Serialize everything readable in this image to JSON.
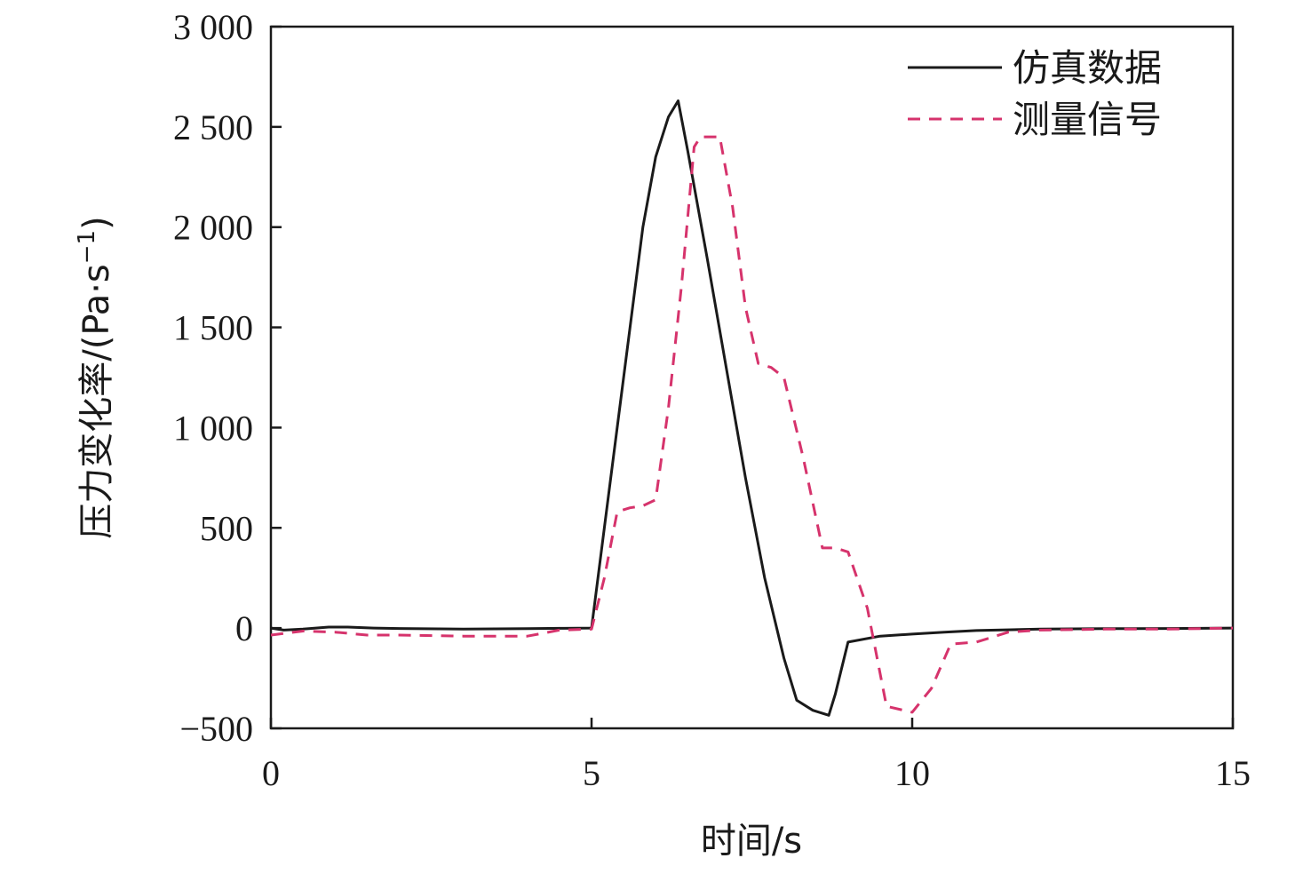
{
  "chart_data": {
    "type": "line",
    "title": "",
    "xlabel": "时间/s",
    "ylabel": "压力变化率/(Pa·s",
    "ylabel_sup": "−1",
    "ylabel_close": ")",
    "xlim": [
      0,
      15
    ],
    "ylim": [
      -500,
      3000
    ],
    "x_ticks": [
      0,
      5,
      10,
      15
    ],
    "x_tick_labels": [
      "0",
      "5",
      "10",
      "15"
    ],
    "y_ticks": [
      -500,
      0,
      500,
      1000,
      1500,
      2000,
      2500,
      3000
    ],
    "y_tick_labels": [
      "−500",
      "0",
      "500",
      "1 000",
      "1 500",
      "2 000",
      "2 500",
      "3 000"
    ],
    "grid": false,
    "legend_position": "top-right",
    "series": [
      {
        "name": "仿真数据",
        "color": "#1a1a1a",
        "dash": "solid",
        "points": [
          [
            0,
            0
          ],
          [
            0.2,
            -10
          ],
          [
            0.5,
            -5
          ],
          [
            0.9,
            5
          ],
          [
            1.2,
            5
          ],
          [
            1.6,
            0
          ],
          [
            2,
            -2
          ],
          [
            3,
            -5
          ],
          [
            4,
            -3
          ],
          [
            4.5,
            -1
          ],
          [
            5,
            0
          ],
          [
            5.2,
            500
          ],
          [
            5.5,
            1250
          ],
          [
            5.8,
            2000
          ],
          [
            6.0,
            2350
          ],
          [
            6.2,
            2550
          ],
          [
            6.35,
            2630
          ],
          [
            6.5,
            2380
          ],
          [
            6.8,
            1850
          ],
          [
            7.1,
            1300
          ],
          [
            7.4,
            750
          ],
          [
            7.7,
            250
          ],
          [
            8.0,
            -150
          ],
          [
            8.2,
            -360
          ],
          [
            8.45,
            -410
          ],
          [
            8.7,
            -435
          ],
          [
            8.8,
            -330
          ],
          [
            9.0,
            -70
          ],
          [
            9.5,
            -40
          ],
          [
            10,
            -30
          ],
          [
            10.5,
            -20
          ],
          [
            11,
            -12
          ],
          [
            12,
            -5
          ],
          [
            13,
            -3
          ],
          [
            14,
            -2
          ],
          [
            15,
            0
          ]
        ]
      },
      {
        "name": "测量信号",
        "color": "#d6336c",
        "dash": "dashed",
        "points": [
          [
            0,
            -35
          ],
          [
            0.5,
            -15
          ],
          [
            1,
            -20
          ],
          [
            1.5,
            -35
          ],
          [
            2,
            -35
          ],
          [
            3,
            -40
          ],
          [
            4,
            -40
          ],
          [
            4.5,
            -10
          ],
          [
            5,
            -5
          ],
          [
            5.2,
            250
          ],
          [
            5.4,
            580
          ],
          [
            5.6,
            600
          ],
          [
            5.8,
            610
          ],
          [
            6.0,
            640
          ],
          [
            6.2,
            1100
          ],
          [
            6.4,
            1700
          ],
          [
            6.6,
            2400
          ],
          [
            6.7,
            2450
          ],
          [
            7.0,
            2450
          ],
          [
            7.2,
            2100
          ],
          [
            7.4,
            1600
          ],
          [
            7.6,
            1320
          ],
          [
            7.8,
            1300
          ],
          [
            8.0,
            1250
          ],
          [
            8.3,
            850
          ],
          [
            8.6,
            400
          ],
          [
            8.8,
            400
          ],
          [
            9.0,
            380
          ],
          [
            9.3,
            100
          ],
          [
            9.6,
            -390
          ],
          [
            10.0,
            -420
          ],
          [
            10.3,
            -300
          ],
          [
            10.6,
            -80
          ],
          [
            11.0,
            -70
          ],
          [
            11.5,
            -20
          ],
          [
            12,
            -10
          ],
          [
            13,
            -5
          ],
          [
            14,
            -5
          ],
          [
            15,
            0
          ]
        ]
      }
    ]
  }
}
